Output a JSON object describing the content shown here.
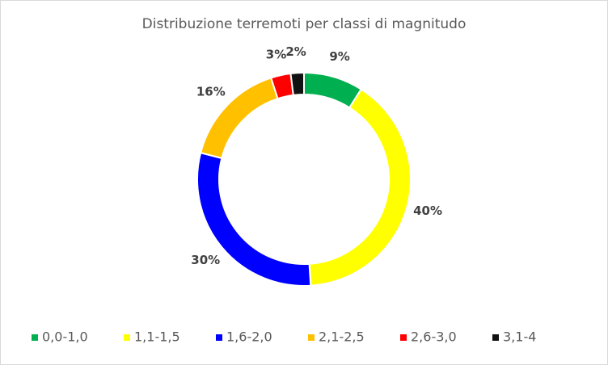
{
  "chart_data": {
    "type": "doughnut",
    "title": "Distribuzione terremoti per classi di magnitudo",
    "categories": [
      "0,0-1,0",
      "1,1-1,5",
      "1,6-2,0",
      "2,1-2,5",
      "2,6-3,0",
      "3,1-4"
    ],
    "values": [
      9,
      40,
      30,
      16,
      3,
      2
    ],
    "value_labels": [
      "9%",
      "40%",
      "30%",
      "16%",
      "3%",
      "2%"
    ],
    "colors": [
      "#00b050",
      "#ffff00",
      "#0000ff",
      "#ffc000",
      "#ff0000",
      "#111111"
    ],
    "legend": "bottom"
  }
}
